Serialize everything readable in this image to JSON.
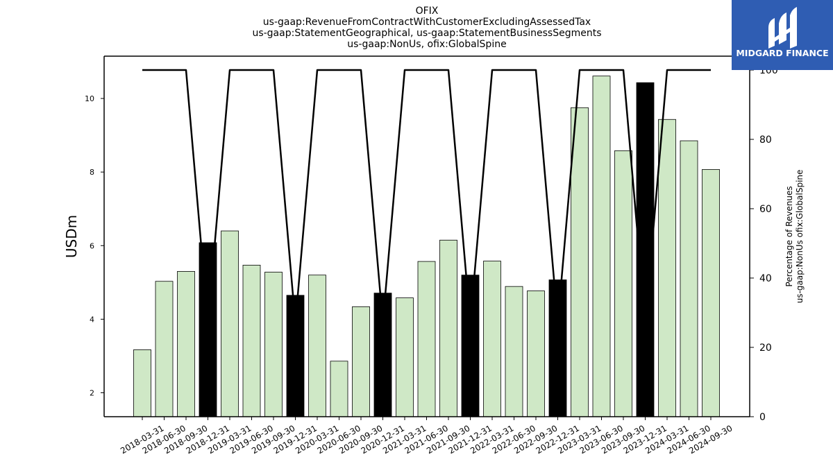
{
  "chart_data": {
    "type": "bar",
    "title_lines": [
      "OFIX",
      "us-gaap:RevenueFromContractWithCustomerExcludingAssessedTax",
      "us-gaap:StatementGeographical, us-gaap:StatementBusinessSegments",
      "us-gaap:NonUs, ofix:GlobalSpine"
    ],
    "categories": [
      "2018-03-31",
      "2018-06-30",
      "2018-09-30",
      "2018-12-31",
      "2019-03-31",
      "2019-06-30",
      "2019-09-30",
      "2019-12-31",
      "2020-03-31",
      "2020-06-30",
      "2020-09-30",
      "2020-12-31",
      "2021-03-31",
      "2021-06-30",
      "2021-09-30",
      "2021-12-31",
      "2022-03-31",
      "2022-06-30",
      "2022-09-30",
      "2022-12-31",
      "2023-03-31",
      "2023-06-30",
      "2023-09-30",
      "2023-12-31",
      "2024-03-31",
      "2024-06-30",
      "2024-09-30"
    ],
    "series": [
      {
        "type": "bar",
        "axis": "left",
        "values": [
          3.17,
          5.03,
          5.3,
          6.08,
          6.4,
          5.47,
          5.28,
          4.65,
          5.2,
          2.86,
          4.34,
          4.71,
          4.58,
          5.57,
          6.15,
          5.2,
          5.58,
          4.89,
          4.77,
          5.07,
          9.75,
          10.61,
          8.58,
          10.43,
          9.43,
          8.85,
          8.07
        ],
        "colors": [
          "#cfe8c6",
          "#cfe8c6",
          "#cfe8c6",
          "#000000",
          "#cfe8c6",
          "#cfe8c6",
          "#cfe8c6",
          "#000000",
          "#cfe8c6",
          "#cfe8c6",
          "#cfe8c6",
          "#000000",
          "#cfe8c6",
          "#cfe8c6",
          "#cfe8c6",
          "#000000",
          "#cfe8c6",
          "#cfe8c6",
          "#cfe8c6",
          "#000000",
          "#cfe8c6",
          "#cfe8c6",
          "#cfe8c6",
          "#000000",
          "#cfe8c6",
          "#cfe8c6",
          "#cfe8c6"
        ]
      },
      {
        "type": "line",
        "axis": "right",
        "values": [
          100,
          100,
          100,
          27,
          100,
          100,
          100,
          27,
          100,
          100,
          100,
          27,
          100,
          100,
          100,
          27,
          100,
          100,
          100,
          27,
          100,
          100,
          100,
          27,
          100,
          100,
          100
        ],
        "color": "#000000"
      }
    ],
    "ylabel": "USDm",
    "ylabel_right": [
      "Percentage of Revenues",
      "us-gaap:NonUs ofix:GlobalSpine"
    ],
    "ylim": [
      1.35,
      11.15
    ],
    "ylim_right": [
      0,
      104
    ],
    "yticks": [
      2,
      4,
      6,
      8,
      10
    ],
    "yticks_right": [
      0,
      20,
      40,
      60,
      80,
      100
    ],
    "grid": false,
    "legend": "none"
  },
  "logo": {
    "text": "MIDGARD FINANCE",
    "bg_color": "#2f5db3",
    "icon": "midgard-logo-icon"
  }
}
